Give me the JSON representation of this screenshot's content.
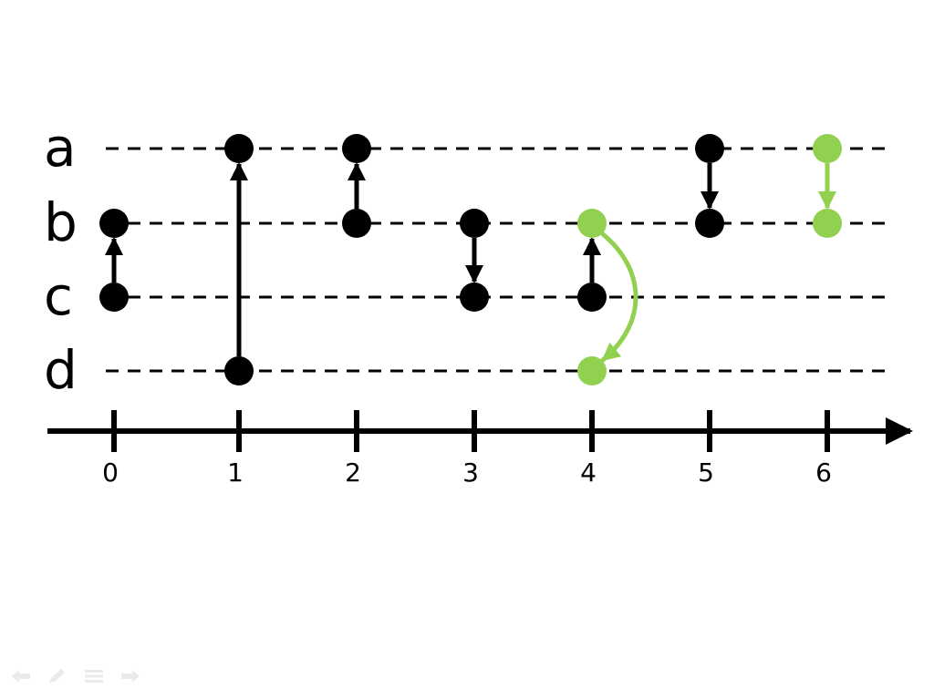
{
  "colors": {
    "default": "#000000",
    "highlight": "#92d050",
    "nav": "#d9d9d9"
  },
  "lanes": [
    "a",
    "b",
    "c",
    "d"
  ],
  "ticks": [
    "0",
    "1",
    "2",
    "3",
    "4",
    "5",
    "6"
  ],
  "links": [
    {
      "step": 0,
      "from": "c",
      "to": "b",
      "color": "default",
      "shape": "straight"
    },
    {
      "step": 1,
      "from": "d",
      "to": "a",
      "color": "default",
      "shape": "straight"
    },
    {
      "step": 2,
      "from": "b",
      "to": "a",
      "color": "default",
      "shape": "straight"
    },
    {
      "step": 3,
      "from": "b",
      "to": "c",
      "color": "default",
      "shape": "straight"
    },
    {
      "step": 4,
      "from": "c",
      "to": "b",
      "color": "default",
      "shape": "straight"
    },
    {
      "step": 4,
      "from": "b",
      "to": "d",
      "color": "highlight",
      "shape": "curved"
    },
    {
      "step": 5,
      "from": "a",
      "to": "b",
      "color": "default",
      "shape": "straight"
    },
    {
      "step": 6,
      "from": "a",
      "to": "b",
      "color": "highlight",
      "shape": "straight"
    }
  ],
  "nav": [
    {
      "name": "nav-prev-icon",
      "icon": "arrow-left-icon"
    },
    {
      "name": "nav-pen-icon",
      "icon": "pen-icon"
    },
    {
      "name": "nav-menu-icon",
      "icon": "menu-icon"
    },
    {
      "name": "nav-next-icon",
      "icon": "arrow-right-icon"
    }
  ]
}
